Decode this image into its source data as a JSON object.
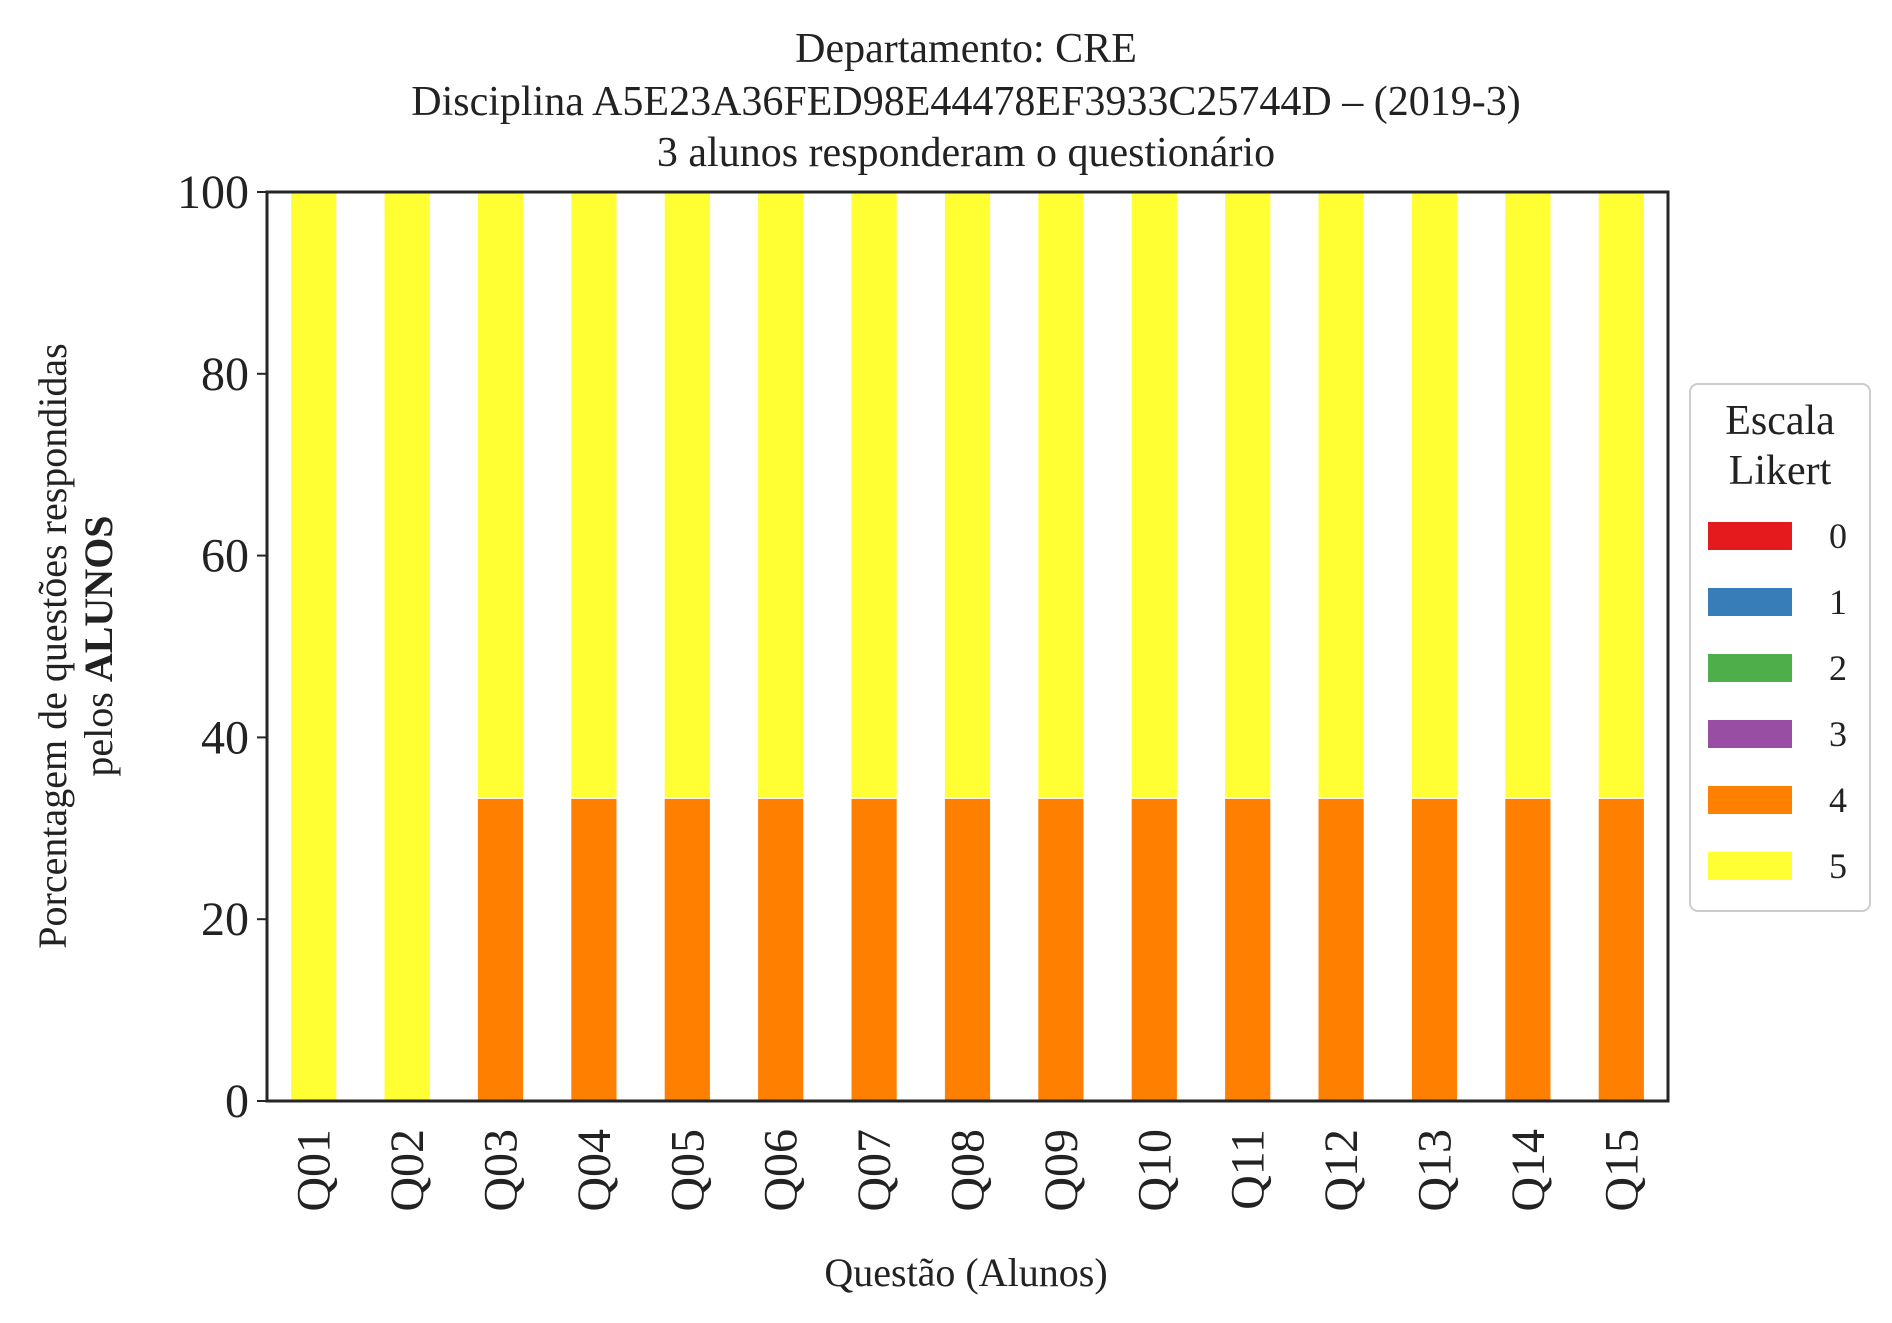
{
  "chart_data": {
    "type": "bar",
    "stacked": true,
    "title": [
      "Departamento: CRE",
      "Disciplina A5E23A36FED98E44478EF3933C25744D – (2019-3)",
      "3 alunos responderam o questionário"
    ],
    "xlabel": "Questão (Alunos)",
    "ylabel_line1": "Porcentagem de questões respondidas",
    "ylabel_line2_prefix": "pelos ",
    "ylabel_line2_bold": "ALUNOS",
    "ylim": [
      0,
      100
    ],
    "yticks": [
      0,
      20,
      40,
      60,
      80,
      100
    ],
    "grid": false,
    "categories": [
      "Q01",
      "Q02",
      "Q03",
      "Q04",
      "Q05",
      "Q06",
      "Q07",
      "Q08",
      "Q09",
      "Q10",
      "Q11",
      "Q12",
      "Q13",
      "Q14",
      "Q15"
    ],
    "series": [
      {
        "name": "0",
        "color": "#e41a1c",
        "values": [
          0,
          0,
          0,
          0,
          0,
          0,
          0,
          0,
          0,
          0,
          0,
          0,
          0,
          0,
          0
        ]
      },
      {
        "name": "1",
        "color": "#377eb8",
        "values": [
          0,
          0,
          0,
          0,
          0,
          0,
          0,
          0,
          0,
          0,
          0,
          0,
          0,
          0,
          0
        ]
      },
      {
        "name": "2",
        "color": "#4daf4a",
        "values": [
          0,
          0,
          0,
          0,
          0,
          0,
          0,
          0,
          0,
          0,
          0,
          0,
          0,
          0,
          0
        ]
      },
      {
        "name": "3",
        "color": "#984ea3",
        "values": [
          0,
          0,
          0,
          0,
          0,
          0,
          0,
          0,
          0,
          0,
          0,
          0,
          0,
          0,
          0
        ]
      },
      {
        "name": "4",
        "color": "#ff7f00",
        "values": [
          0,
          0,
          33.33,
          33.33,
          33.33,
          33.33,
          33.33,
          33.33,
          33.33,
          33.33,
          33.33,
          33.33,
          33.33,
          33.33,
          33.33
        ]
      },
      {
        "name": "5",
        "color": "#ffff33",
        "values": [
          100,
          100,
          66.67,
          66.67,
          66.67,
          66.67,
          66.67,
          66.67,
          66.67,
          66.67,
          66.67,
          66.67,
          66.67,
          66.67,
          66.67
        ]
      }
    ],
    "legend": {
      "title": [
        "Escala",
        "Likert"
      ],
      "placement": "center-right-outside"
    }
  }
}
